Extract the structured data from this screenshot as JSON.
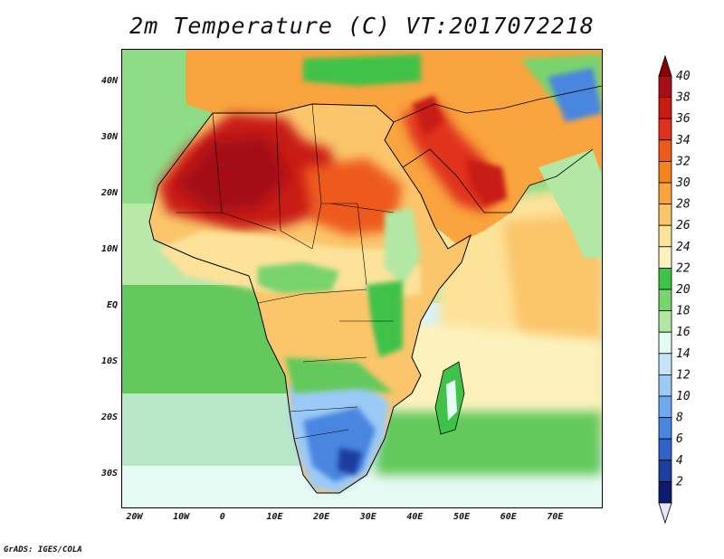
{
  "title": "2m Temperature (C) VT:2017072218",
  "credit": "GrADS: IGES/COLA",
  "map": {
    "lon_range": [
      -23,
      80
    ],
    "lat_range": [
      -36,
      46
    ],
    "lon_ticks": [
      {
        "value": -20,
        "label": "20W"
      },
      {
        "value": -10,
        "label": "10W"
      },
      {
        "value": 0,
        "label": "0"
      },
      {
        "value": 10,
        "label": "10E"
      },
      {
        "value": 20,
        "label": "20E"
      },
      {
        "value": 30,
        "label": "30E"
      },
      {
        "value": 40,
        "label": "40E"
      },
      {
        "value": 50,
        "label": "50E"
      },
      {
        "value": 60,
        "label": "60E"
      },
      {
        "value": 70,
        "label": "70E"
      }
    ],
    "lat_ticks": [
      {
        "value": 40,
        "label": "40N"
      },
      {
        "value": 30,
        "label": "30N"
      },
      {
        "value": 20,
        "label": "20N"
      },
      {
        "value": 10,
        "label": "10N"
      },
      {
        "value": 0,
        "label": "EQ"
      },
      {
        "value": -10,
        "label": "10S"
      },
      {
        "value": -20,
        "label": "20S"
      },
      {
        "value": -30,
        "label": "30S"
      }
    ]
  },
  "colorbar": {
    "labels": [
      "40",
      "38",
      "36",
      "34",
      "32",
      "30",
      "28",
      "26",
      "24",
      "22",
      "20",
      "18",
      "16",
      "14",
      "12",
      "10",
      "8",
      "6",
      "4",
      "2"
    ],
    "colors": [
      "#a50f15",
      "#c81b12",
      "#e0301e",
      "#ee5a1c",
      "#f5841f",
      "#f9a43e",
      "#fbc56b",
      "#fde29a",
      "#fdf2bd",
      "#3fc24a",
      "#79d46e",
      "#b2e8a4",
      "#e6faf4",
      "#c4e4fb",
      "#9ccaf6",
      "#6fa9ee",
      "#4a86e0",
      "#2f63c6",
      "#1b3e9f",
      "#0d1b6e"
    ],
    "top_arrow_color": "#8b0000",
    "bottom_arrow_color": "#e6e6ff"
  }
}
